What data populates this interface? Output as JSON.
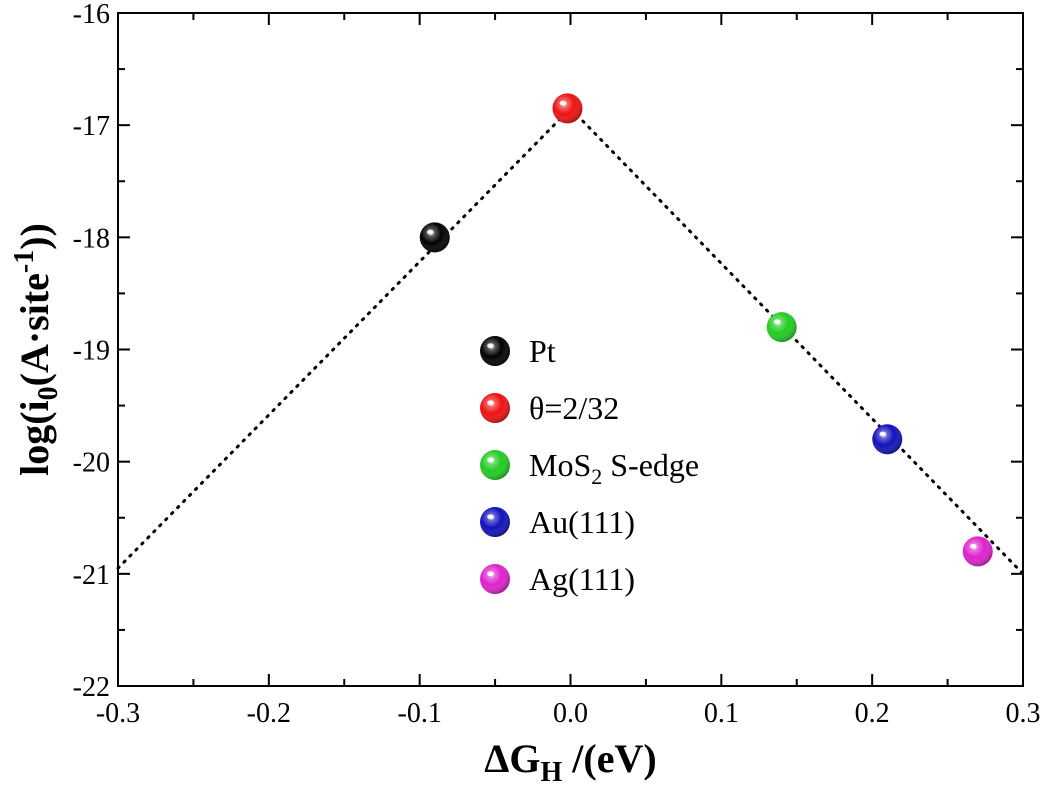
{
  "chart_data": {
    "type": "scatter",
    "xlabel": "ΔG_H /(eV)",
    "ylabel": "log(i_0(A·site^-1))",
    "xlim": [
      -0.3,
      0.3
    ],
    "ylim": [
      -22,
      -16
    ],
    "x_ticks": [
      "-0.3",
      "-0.2",
      "-0.1",
      "0.0",
      "0.1",
      "0.2",
      "0.3"
    ],
    "y_ticks": [
      "-22",
      "-21",
      "-20",
      "-19",
      "-18",
      "-17",
      "-16"
    ],
    "legend_position": "center",
    "grid": false,
    "series": [
      {
        "name": "Pt",
        "legend_label": "Pt",
        "x": -0.09,
        "y": -18.0,
        "color": "#000000"
      },
      {
        "name": "θ=2/32",
        "legend_label": "θ=2/32",
        "x": -0.002,
        "y": -16.85,
        "color": "#ee1111"
      },
      {
        "name": "MoS2 S-edge",
        "legend_label": "MoS2 S-edge",
        "x": 0.14,
        "y": -18.8,
        "color": "#22cc22"
      },
      {
        "name": "Au(111)",
        "legend_label": "Au(111)",
        "x": 0.21,
        "y": -19.8,
        "color": "#1111bb"
      },
      {
        "name": "Ag(111)",
        "legend_label": "Ag(111)",
        "x": 0.27,
        "y": -20.8,
        "color": "#dd22cc"
      }
    ],
    "trend_line": {
      "style": "dotted",
      "x": [
        -0.3,
        0.0,
        0.3
      ],
      "y": [
        -20.95,
        -16.85,
        -21.0
      ]
    }
  }
}
